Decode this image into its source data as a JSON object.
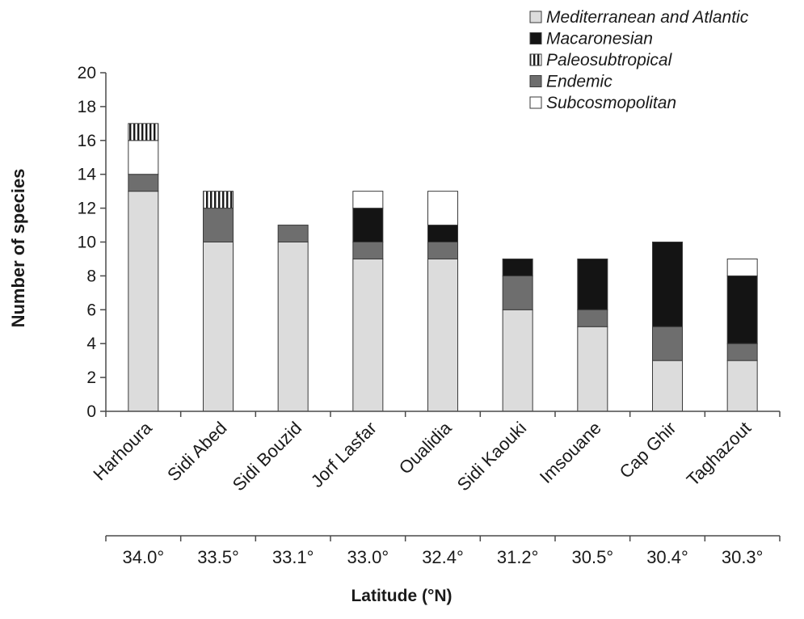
{
  "chart_data": {
    "type": "bar",
    "stacked": true,
    "categories": [
      "Harhoura",
      "Sidi Abed",
      "Sidi Bouzid",
      "Jorf Lasfar",
      "Oualidia",
      "Sidi Kaouki",
      "Imsouane",
      "Cap Ghir",
      "Taghazout"
    ],
    "latitudes": [
      "34.0°",
      "33.5°",
      "33.1°",
      "33.0°",
      "32.4°",
      "31.2°",
      "30.5°",
      "30.4°",
      "30.3°"
    ],
    "series": [
      {
        "name": "Mediterranean and Atlantic",
        "color": "#dcdcdc",
        "pattern": "solid",
        "values": [
          13,
          10,
          10,
          9,
          9,
          6,
          5,
          3,
          3
        ]
      },
      {
        "name": "Endemic",
        "color": "#6e6e6e",
        "pattern": "solid",
        "values": [
          1,
          2,
          1,
          1,
          1,
          2,
          1,
          2,
          1
        ]
      },
      {
        "name": "Subcosmopolitan",
        "color": "#ffffff",
        "pattern": "solid",
        "values": [
          2,
          0,
          0,
          1,
          2,
          0,
          0,
          0,
          1
        ]
      },
      {
        "name": "Paleosubtropical",
        "color": "#ffffff",
        "pattern": "vertical-stripes",
        "values": [
          1,
          1,
          0,
          0,
          0,
          0,
          0,
          0,
          0
        ]
      },
      {
        "name": "Macaronesian",
        "color": "#141414",
        "pattern": "solid",
        "values": [
          0,
          0,
          0,
          2,
          1,
          1,
          3,
          5,
          4
        ]
      }
    ],
    "stack_order": [
      "Mediterranean and Atlantic",
      "Endemic",
      "Macaronesian",
      "Subcosmopolitan",
      "Paleosubtropical"
    ],
    "legend_order": [
      "Mediterranean and Atlantic",
      "Macaronesian",
      "Paleosubtropical",
      "Endemic",
      "Subcosmopolitan"
    ],
    "ylabel": "Number of species",
    "xlabel": "Latitude (°N)",
    "ylim": [
      0,
      20
    ],
    "yticks": [
      0,
      2,
      4,
      6,
      8,
      10,
      12,
      14,
      16,
      18,
      20
    ],
    "grid": false,
    "legend_position": "top-right"
  }
}
